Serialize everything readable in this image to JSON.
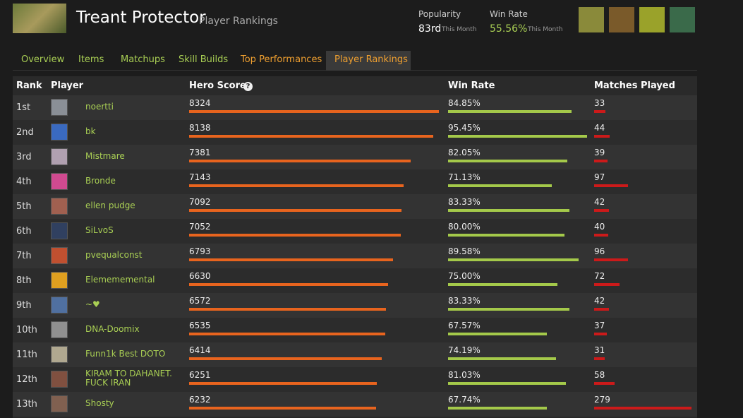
{
  "header": {
    "title": "Treant Protector",
    "subtitle": "Player Rankings",
    "popularity": {
      "label": "Popularity",
      "value": "83rd",
      "note": "This Month"
    },
    "win_rate": {
      "label": "Win Rate",
      "value": "55.56%",
      "note": "This Month"
    }
  },
  "tabs": [
    "Overview",
    "Items",
    "Matchups",
    "Skill Builds",
    "Top Performances",
    "Player Rankings"
  ],
  "table": {
    "columns": [
      "Rank",
      "Player",
      "Hero Score",
      "Win Rate",
      "Matches Played"
    ],
    "rows": [
      [
        "1st",
        "noertti",
        8324,
        "84.85%",
        33
      ],
      [
        "2nd",
        "bk",
        8138,
        "95.45%",
        44
      ],
      [
        "3rd",
        "Mistmare",
        7381,
        "82.05%",
        39
      ],
      [
        "4th",
        "Bronde",
        7143,
        "71.13%",
        97
      ],
      [
        "5th",
        "ellen pudge",
        7092,
        "83.33%",
        42
      ],
      [
        "6th",
        "SiLvoS",
        7052,
        "80.00%",
        40
      ],
      [
        "7th",
        "pvequalconst",
        6793,
        "89.58%",
        96
      ],
      [
        "8th",
        "Elemememental",
        6630,
        "75.00%",
        72
      ],
      [
        "9th",
        "~♥",
        6572,
        "83.33%",
        42
      ],
      [
        "10th",
        "DNA-Doomix",
        6535,
        "67.57%",
        37
      ],
      [
        "11th",
        "Funn1k Best DOTO",
        6414,
        "74.19%",
        31
      ],
      [
        "12th",
        "KIRAM TO DAHANET. FUCK IRAN",
        6251,
        "81.03%",
        58
      ],
      [
        "13th",
        "Shosty",
        6232,
        "67.74%",
        279
      ]
    ]
  }
}
